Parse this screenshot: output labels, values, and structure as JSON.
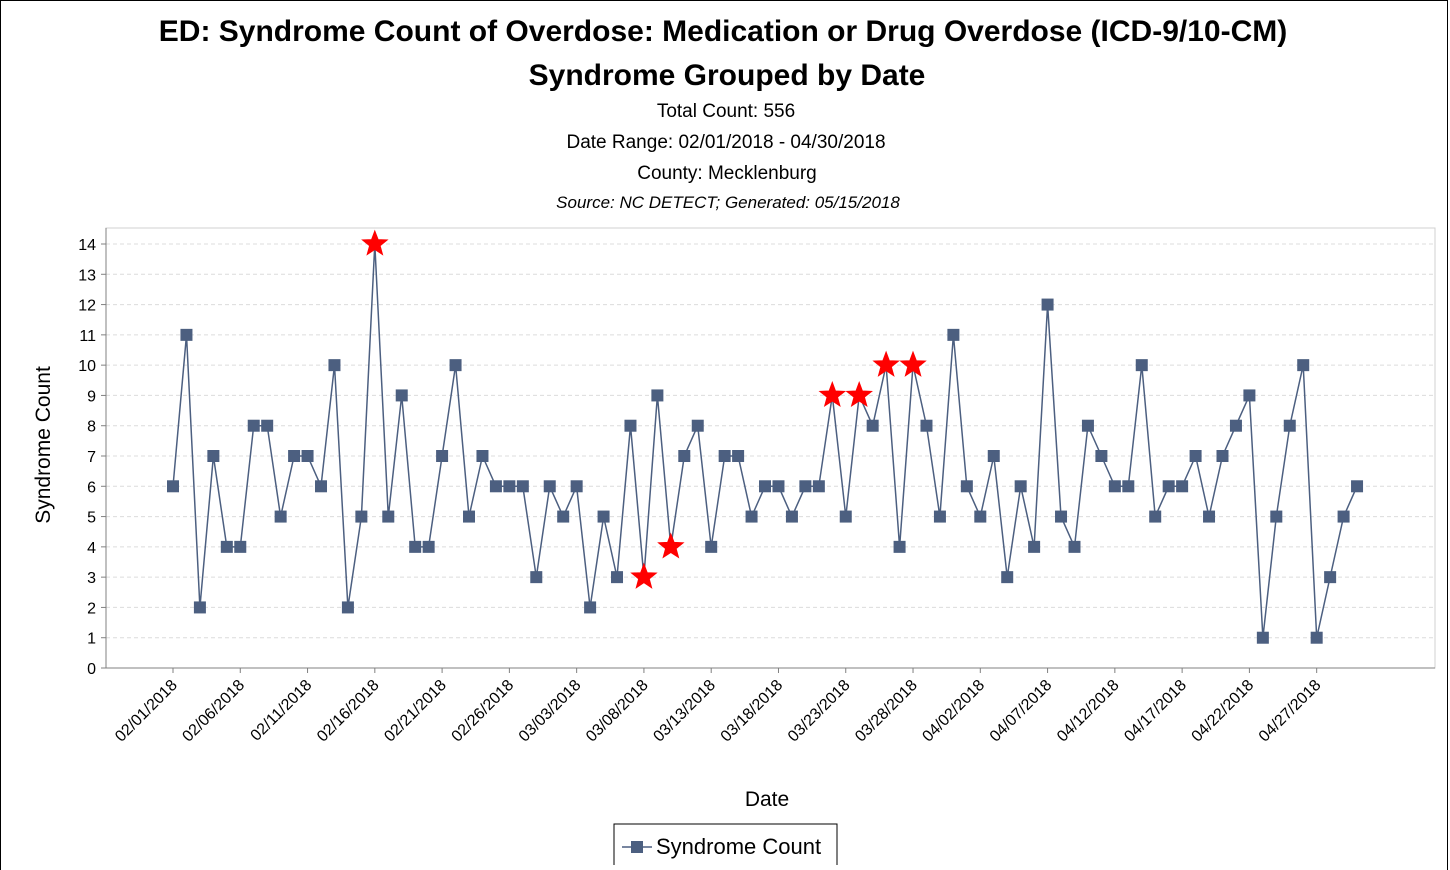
{
  "chart_data": {
    "type": "line",
    "title": "ED: Syndrome Count of Overdose: Medication or Drug Overdose (ICD-9/10-CM)",
    "title_line2": "Syndrome Grouped by Date",
    "total_count": "Total Count: 556",
    "date_range": "Date Range: 02/01/2018 - 04/30/2018",
    "county": "County: Mecklenburg",
    "source": "Source: NC DETECT; Generated: 05/15/2018",
    "xlabel": "Date",
    "ylabel": "Syndrome Count",
    "ylim": [
      0,
      14
    ],
    "yticks": [
      0,
      1,
      2,
      3,
      4,
      5,
      6,
      7,
      8,
      9,
      10,
      11,
      12,
      13,
      14
    ],
    "grid": true,
    "legend_position": "bottom-center",
    "x_tick_labels": [
      "02/01/2018",
      "02/06/2018",
      "02/11/2018",
      "02/16/2018",
      "02/21/2018",
      "02/26/2018",
      "03/03/2018",
      "03/08/2018",
      "03/13/2018",
      "03/18/2018",
      "03/23/2018",
      "03/28/2018",
      "04/02/2018",
      "04/07/2018",
      "04/12/2018",
      "04/17/2018",
      "04/22/2018",
      "04/27/2018"
    ],
    "x_start": "02/01/2018",
    "x_end": "04/30/2018",
    "series": [
      {
        "name": "Syndrome Count",
        "color": "#4c5f80",
        "values": [
          6,
          11,
          2,
          7,
          4,
          4,
          8,
          8,
          5,
          7,
          7,
          6,
          10,
          2,
          5,
          14,
          5,
          9,
          4,
          4,
          7,
          10,
          5,
          7,
          6,
          6,
          6,
          3,
          6,
          5,
          6,
          2,
          5,
          3,
          8,
          3,
          9,
          4,
          7,
          8,
          4,
          7,
          7,
          5,
          6,
          6,
          5,
          6,
          6,
          9,
          5,
          9,
          8,
          10,
          4,
          10,
          8,
          5,
          11,
          6,
          5,
          7,
          3,
          6,
          4,
          12,
          5,
          4,
          8,
          7,
          6,
          6,
          10,
          5,
          6,
          6,
          7,
          5,
          7,
          8,
          9,
          1,
          5,
          8,
          10,
          1,
          3,
          5,
          6
        ]
      }
    ],
    "alert_dates": [
      "02/16/2018",
      "03/08/2018",
      "03/10/2018",
      "03/22/2018",
      "03/24/2018",
      "03/26/2018",
      "03/28/2018"
    ],
    "alert_color": "#ff0000"
  }
}
